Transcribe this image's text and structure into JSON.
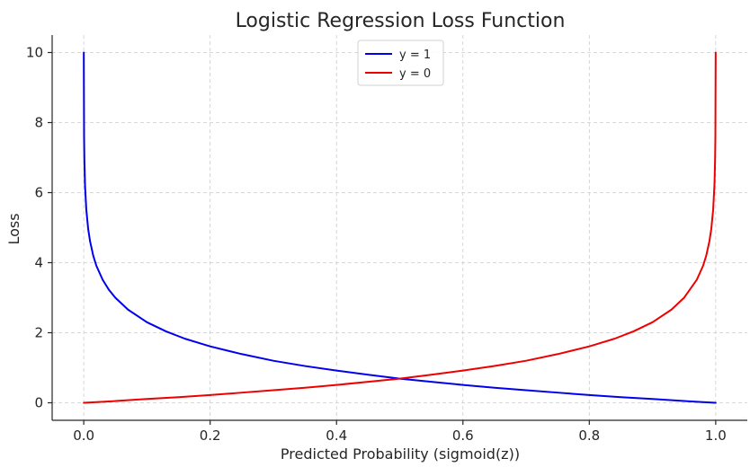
{
  "chart_data": {
    "type": "line",
    "title": "Logistic Regression Loss Function",
    "xlabel": "Predicted Probability (sigmoid(z))",
    "ylabel": "Loss",
    "xlim": [
      -0.05,
      1.05
    ],
    "ylim": [
      -0.5,
      10.5
    ],
    "xticks": [
      0.0,
      0.2,
      0.4,
      0.6,
      0.8,
      1.0
    ],
    "xtick_labels": [
      "0.0",
      "0.2",
      "0.4",
      "0.6",
      "0.8",
      "1.0"
    ],
    "yticks": [
      0,
      2,
      4,
      6,
      8,
      10
    ],
    "ytick_labels": [
      "0",
      "2",
      "4",
      "6",
      "8",
      "10"
    ],
    "grid": true,
    "legend_position": "top-center",
    "series": [
      {
        "name": "y = 1",
        "color": "#0000ee",
        "x": [
          4.54e-05,
          0.0005,
          0.001,
          0.002,
          0.004,
          0.007,
          0.01,
          0.015,
          0.02,
          0.03,
          0.04,
          0.05,
          0.07,
          0.1,
          0.13,
          0.16,
          0.2,
          0.25,
          0.3,
          0.35,
          0.4,
          0.45,
          0.5,
          0.55,
          0.6,
          0.65,
          0.7,
          0.75,
          0.8,
          0.85,
          0.9,
          0.95,
          0.98,
          0.9999546
        ],
        "y": [
          10.0,
          7.6,
          6.91,
          6.21,
          5.52,
          4.96,
          4.61,
          4.2,
          3.91,
          3.51,
          3.22,
          3.0,
          2.66,
          2.3,
          2.04,
          1.83,
          1.61,
          1.39,
          1.2,
          1.05,
          0.92,
          0.8,
          0.69,
          0.6,
          0.51,
          0.43,
          0.36,
          0.29,
          0.22,
          0.16,
          0.11,
          0.05,
          0.02,
          0.0
        ]
      },
      {
        "name": "y = 0",
        "color": "#ee0000",
        "x": [
          4.54e-05,
          0.02,
          0.05,
          0.1,
          0.15,
          0.2,
          0.25,
          0.3,
          0.35,
          0.4,
          0.45,
          0.5,
          0.55,
          0.6,
          0.65,
          0.7,
          0.75,
          0.8,
          0.84,
          0.87,
          0.9,
          0.93,
          0.95,
          0.97,
          0.98,
          0.985,
          0.99,
          0.993,
          0.996,
          0.998,
          0.999,
          0.9995,
          0.9999546
        ],
        "y": [
          0.0,
          0.02,
          0.05,
          0.11,
          0.16,
          0.22,
          0.29,
          0.36,
          0.43,
          0.51,
          0.6,
          0.69,
          0.8,
          0.92,
          1.05,
          1.2,
          1.39,
          1.61,
          1.83,
          2.04,
          2.3,
          2.66,
          3.0,
          3.51,
          3.91,
          4.2,
          4.61,
          4.96,
          5.52,
          6.21,
          6.91,
          7.6,
          10.0
        ]
      }
    ]
  }
}
